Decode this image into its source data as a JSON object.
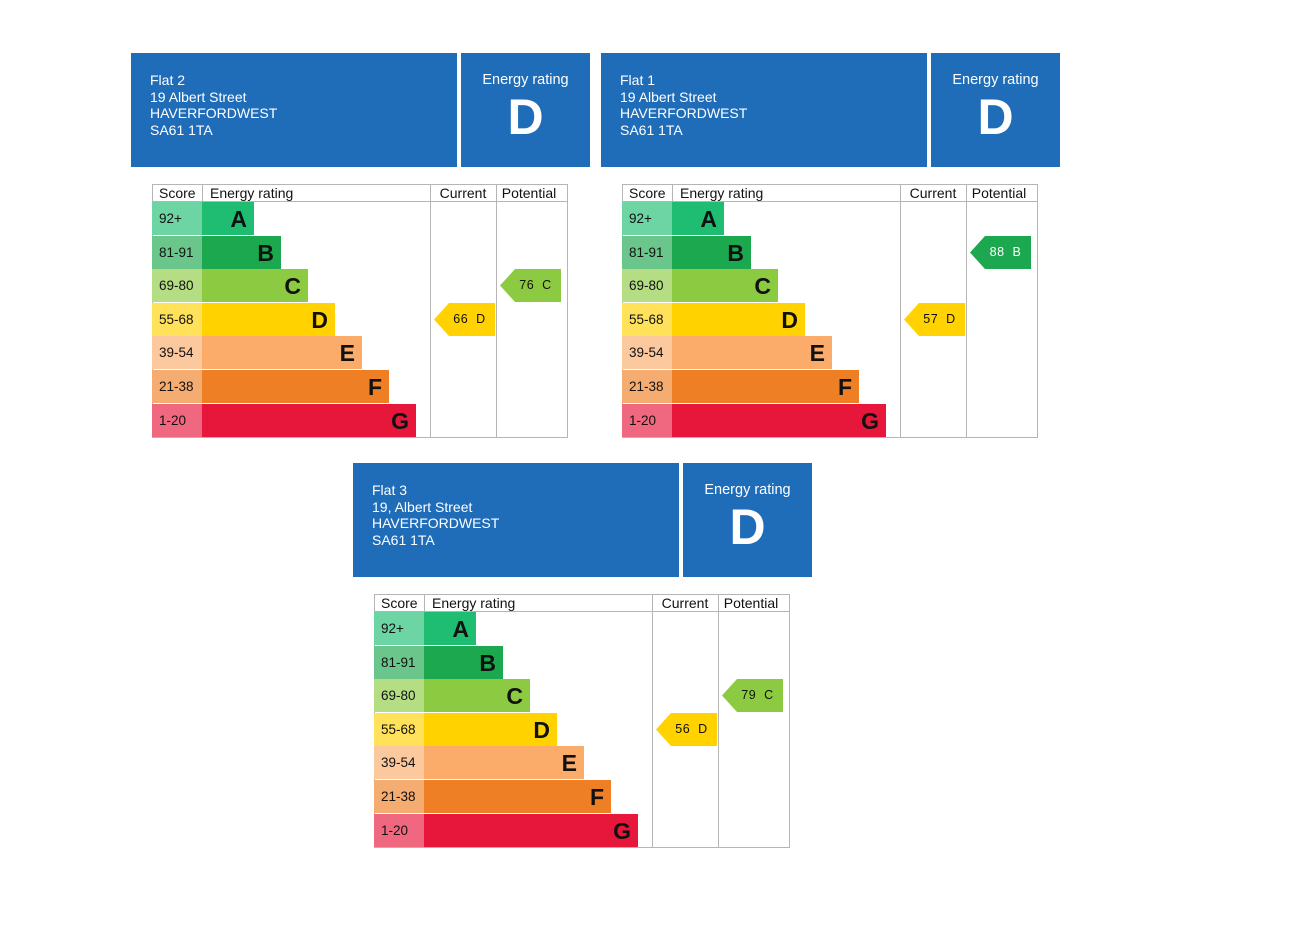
{
  "chart_data": [
    {
      "type": "table",
      "title": "Energy rating",
      "address": [
        "Flat 2",
        "19 Albert Street",
        "HAVERFORDWEST",
        "SA61 1TA"
      ],
      "energy_rating_label": "Energy rating",
      "overall_rating": "D",
      "columns": [
        "Score",
        "Energy rating",
        "Current",
        "Potential"
      ],
      "bands": [
        {
          "score": "92+",
          "letter": "A",
          "color": "#1fbd72"
        },
        {
          "score": "81-91",
          "letter": "B",
          "color": "#1ba84e"
        },
        {
          "score": "69-80",
          "letter": "C",
          "color": "#8ccb41"
        },
        {
          "score": "55-68",
          "letter": "D",
          "color": "#ffd200"
        },
        {
          "score": "39-54",
          "letter": "E",
          "color": "#fbab6a"
        },
        {
          "score": "21-38",
          "letter": "F",
          "color": "#ef7f24"
        },
        {
          "score": "1-20",
          "letter": "G",
          "color": "#e6173a"
        }
      ],
      "current": {
        "value": 66,
        "letter": "D"
      },
      "potential": {
        "value": 76,
        "letter": "C"
      }
    },
    {
      "type": "table",
      "title": "Energy rating",
      "address": [
        "Flat 1",
        "19 Albert Street",
        "HAVERFORDWEST",
        "SA61 1TA"
      ],
      "energy_rating_label": "Energy rating",
      "overall_rating": "D",
      "columns": [
        "Score",
        "Energy rating",
        "Current",
        "Potential"
      ],
      "bands": [
        {
          "score": "92+",
          "letter": "A",
          "color": "#1fbd72"
        },
        {
          "score": "81-91",
          "letter": "B",
          "color": "#1ba84e"
        },
        {
          "score": "69-80",
          "letter": "C",
          "color": "#8ccb41"
        },
        {
          "score": "55-68",
          "letter": "D",
          "color": "#ffd200"
        },
        {
          "score": "39-54",
          "letter": "E",
          "color": "#fbab6a"
        },
        {
          "score": "21-38",
          "letter": "F",
          "color": "#ef7f24"
        },
        {
          "score": "1-20",
          "letter": "G",
          "color": "#e6173a"
        }
      ],
      "current": {
        "value": 57,
        "letter": "D"
      },
      "potential": {
        "value": 88,
        "letter": "B"
      }
    },
    {
      "type": "table",
      "title": "Energy rating",
      "address": [
        "Flat 3",
        "19, Albert Street",
        "HAVERFORDWEST",
        "SA61 1TA"
      ],
      "energy_rating_label": "Energy rating",
      "overall_rating": "D",
      "columns": [
        "Score",
        "Energy rating",
        "Current",
        "Potential"
      ],
      "bands": [
        {
          "score": "92+",
          "letter": "A",
          "color": "#1fbd72"
        },
        {
          "score": "81-91",
          "letter": "B",
          "color": "#1ba84e"
        },
        {
          "score": "69-80",
          "letter": "C",
          "color": "#8ccb41"
        },
        {
          "score": "55-68",
          "letter": "D",
          "color": "#ffd200"
        },
        {
          "score": "39-54",
          "letter": "E",
          "color": "#fbab6a"
        },
        {
          "score": "21-38",
          "letter": "F",
          "color": "#ef7f24"
        },
        {
          "score": "1-20",
          "letter": "G",
          "color": "#e6173a"
        }
      ],
      "current": {
        "value": 56,
        "letter": "D"
      },
      "potential": {
        "value": 79,
        "letter": "C"
      }
    }
  ]
}
